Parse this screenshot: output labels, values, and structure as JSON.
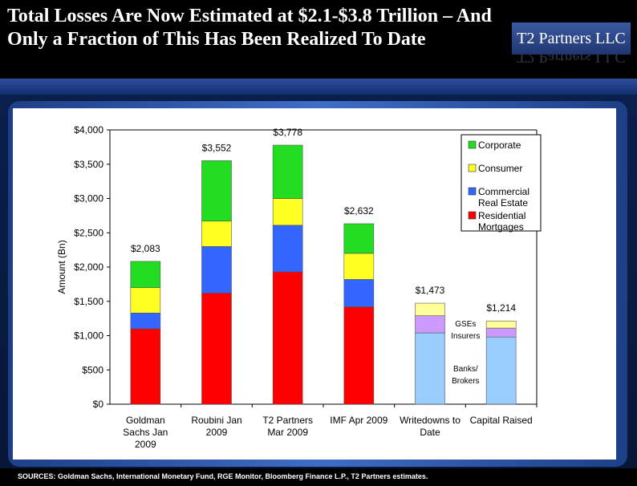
{
  "header": {
    "title": "Total Losses Are Now Estimated at $2.1-$3.8 Trillion – And Only a Fraction of This Has Been Realized To Date",
    "logo_text": "T2 Partners LLC"
  },
  "footer": {
    "sources": "SOURCES: Goldman Sachs, International Monetary Fund, RGE Monitor, Bloomberg Finance L.P., T2 Partners estimates."
  },
  "colors": {
    "Corporate": "#22dd22",
    "Consumer": "#ffff22",
    "Commercial Real Estate": "#3366ff",
    "Residential Mortgages": "#ff0000",
    "Banks/ Brokers": "#99ccff",
    "Insurers": "#cc99ff",
    "GSEs": "#ffff99"
  },
  "chart_data": {
    "type": "bar",
    "stacked": true,
    "ylabel": "Amount (Bn)",
    "ylim": [
      0,
      4000
    ],
    "yticks": [
      "$0",
      "$500",
      "$1,000",
      "$1,500",
      "$2,000",
      "$2,500",
      "$3,000",
      "$3,500",
      "$4,000"
    ],
    "categories": [
      [
        "Goldman",
        "Sachs Jan",
        "2009"
      ],
      [
        "Roubini Jan",
        "2009"
      ],
      [
        "T2 Partners",
        "Mar 2009"
      ],
      [
        "IMF Apr 2009"
      ],
      [
        "Writedowns to",
        "Date"
      ],
      [
        "Capital Raised"
      ]
    ],
    "totals": [
      "$2,083",
      "$3,552",
      "$3,778",
      "$2,632",
      "$1,473",
      "$1,214"
    ],
    "series": [
      {
        "name": "Residential Mortgages",
        "values": [
          1100,
          1620,
          1930,
          1420,
          null,
          null
        ]
      },
      {
        "name": "Commercial Real Estate",
        "values": [
          230,
          680,
          680,
          400,
          null,
          null
        ]
      },
      {
        "name": "Consumer",
        "values": [
          370,
          370,
          390,
          380,
          null,
          null
        ]
      },
      {
        "name": "Corporate",
        "values": [
          383,
          882,
          778,
          432,
          null,
          null
        ]
      },
      {
        "name": "Banks/ Brokers",
        "values": [
          null,
          null,
          null,
          null,
          1040,
          980
        ]
      },
      {
        "name": "Insurers",
        "values": [
          null,
          null,
          null,
          null,
          250,
          130
        ]
      },
      {
        "name": "GSEs",
        "values": [
          null,
          null,
          null,
          null,
          183,
          104
        ]
      }
    ],
    "legend": {
      "placement": "top-right",
      "entries": [
        {
          "series": "Corporate",
          "lines": [
            "Corporate"
          ]
        },
        {
          "series": "Consumer",
          "lines": [
            "Consumer"
          ]
        },
        {
          "series": "Commercial Real Estate",
          "lines": [
            "Commercial",
            "Real Estate"
          ]
        },
        {
          "series": "Residential Mortgages",
          "lines": [
            "Residential",
            "Mortgages"
          ]
        }
      ]
    },
    "annotations": [
      {
        "lines": [
          "GSEs"
        ],
        "value": 1135
      },
      {
        "lines": [
          "Insurers"
        ],
        "value": 960
      },
      {
        "lines": [
          "Banks/",
          "Brokers"
        ],
        "value": 480
      }
    ]
  }
}
